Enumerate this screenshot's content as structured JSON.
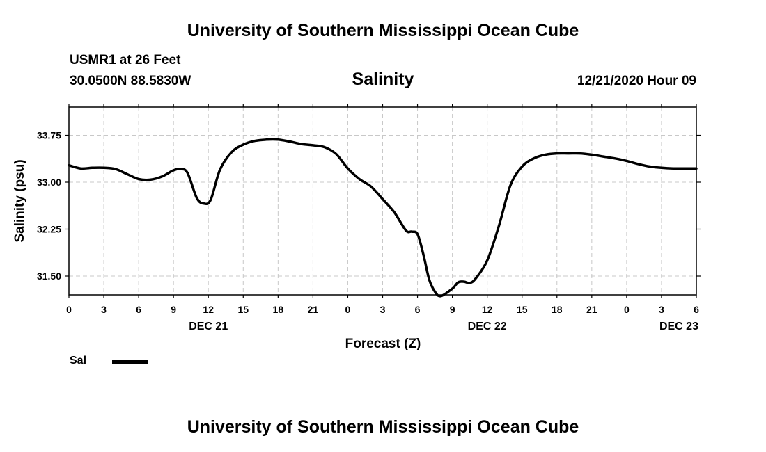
{
  "header": {
    "title": "University of Southern Mississippi Ocean Cube",
    "station": "USMR1 at 26 Feet",
    "coordinates": "30.0500N 88.5830W",
    "datetime": "12/21/2020 Hour 09"
  },
  "footer": {
    "title": "University of Southern Mississippi Ocean Cube"
  },
  "legend": {
    "placement": "bottom-left",
    "items": [
      {
        "label": "Sal",
        "color": "#000000"
      }
    ]
  },
  "chart_data": {
    "type": "line",
    "title": "Salinity",
    "xlabel": "Forecast (Z)",
    "ylabel": "Salinity (psu)",
    "xlim": [
      0,
      54
    ],
    "ylim": [
      31.2,
      34.2
    ],
    "grid": true,
    "x_ticks": [
      {
        "value": 0,
        "label": "0"
      },
      {
        "value": 3,
        "label": "3"
      },
      {
        "value": 6,
        "label": "6"
      },
      {
        "value": 9,
        "label": "9"
      },
      {
        "value": 12,
        "label": "12"
      },
      {
        "value": 15,
        "label": "15"
      },
      {
        "value": 18,
        "label": "18"
      },
      {
        "value": 21,
        "label": "21"
      },
      {
        "value": 24,
        "label": "0"
      },
      {
        "value": 27,
        "label": "3"
      },
      {
        "value": 30,
        "label": "6"
      },
      {
        "value": 33,
        "label": "9"
      },
      {
        "value": 36,
        "label": "12"
      },
      {
        "value": 39,
        "label": "15"
      },
      {
        "value": 42,
        "label": "18"
      },
      {
        "value": 45,
        "label": "21"
      },
      {
        "value": 48,
        "label": "0"
      },
      {
        "value": 51,
        "label": "3"
      },
      {
        "value": 54,
        "label": "6"
      }
    ],
    "date_labels": [
      {
        "value": 12,
        "label": "DEC 21"
      },
      {
        "value": 36,
        "label": "DEC 22"
      },
      {
        "value": 52.5,
        "label": "DEC 23"
      }
    ],
    "y_ticks": [
      {
        "value": 31.5,
        "label": "31.50"
      },
      {
        "value": 32.25,
        "label": "32.25"
      },
      {
        "value": 33.0,
        "label": "33.00"
      },
      {
        "value": 33.75,
        "label": "33.75"
      }
    ],
    "series": [
      {
        "name": "Sal",
        "color": "#000000",
        "x": [
          0,
          1,
          2,
          3,
          4,
          5,
          6,
          7,
          8,
          9,
          9.6,
          10.2,
          11,
          11.6,
          12.2,
          13,
          14,
          15,
          16,
          17,
          18,
          19,
          20,
          21,
          22,
          23,
          24,
          25,
          26,
          27,
          28,
          29,
          29.5,
          30,
          30.5,
          31,
          31.5,
          32,
          33,
          33.5,
          34,
          34.5,
          35,
          36,
          37,
          38,
          39,
          40,
          41,
          42,
          43,
          44,
          45,
          46,
          47,
          48,
          49,
          50,
          51,
          52,
          53,
          54
        ],
        "y": [
          33.27,
          33.22,
          33.23,
          33.23,
          33.21,
          33.13,
          33.05,
          33.04,
          33.09,
          33.19,
          33.21,
          33.15,
          32.75,
          32.66,
          32.72,
          33.2,
          33.48,
          33.6,
          33.66,
          33.68,
          33.68,
          33.65,
          33.61,
          33.59,
          33.56,
          33.45,
          33.22,
          33.05,
          32.93,
          32.73,
          32.52,
          32.23,
          32.21,
          32.17,
          31.85,
          31.45,
          31.25,
          31.18,
          31.3,
          31.4,
          31.41,
          31.39,
          31.46,
          31.75,
          32.3,
          32.95,
          33.25,
          33.38,
          33.44,
          33.46,
          33.46,
          33.46,
          33.44,
          33.41,
          33.38,
          33.34,
          33.29,
          33.25,
          33.23,
          33.22,
          33.22,
          33.22
        ]
      }
    ]
  }
}
